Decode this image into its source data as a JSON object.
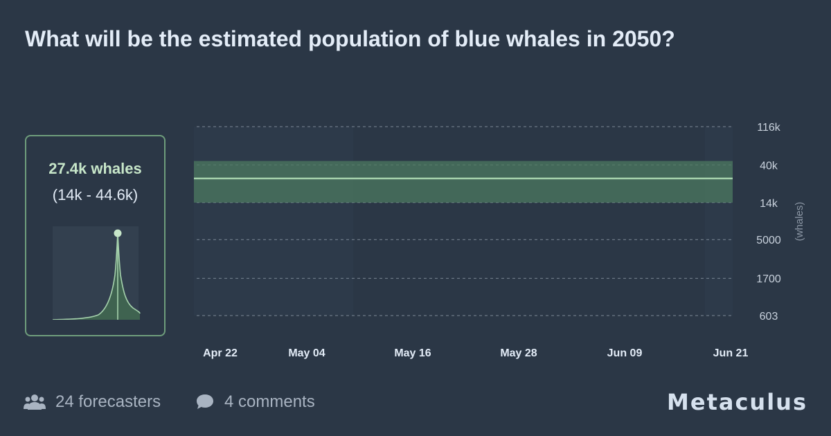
{
  "question": {
    "title": "What will be the estimated population of blue whales in 2050?"
  },
  "summary": {
    "value": "27.4k whales",
    "range": "(14k - 44.6k)"
  },
  "chart_data": {
    "type": "area",
    "x_ticks": [
      "Apr 22",
      "May 04",
      "May 16",
      "May 28",
      "Jun 09",
      "Jun 21"
    ],
    "y_ticks": [
      "116k",
      "40k",
      "14k",
      "5000",
      "1700",
      "603"
    ],
    "y_tick_values": [
      116000,
      40000,
      14000,
      5000,
      1700,
      603
    ],
    "y_scale": "log",
    "ylabel": "(whales)",
    "grid": true,
    "series": [
      {
        "median": 27400,
        "lower": 14000,
        "upper": 44600,
        "x": [
          "Apr 22",
          "Jun 21"
        ]
      }
    ],
    "colors": {
      "band": "#4c7a60",
      "line": "#a6d3ad",
      "grid": "#7d8896",
      "tick_text": "#c9d2dd"
    }
  },
  "footer": {
    "forecasters": "24 forecasters",
    "comments": "4 comments",
    "brand": "Metaculus"
  },
  "icons": {
    "forecasters": "users-icon",
    "comments": "comment-icon"
  }
}
